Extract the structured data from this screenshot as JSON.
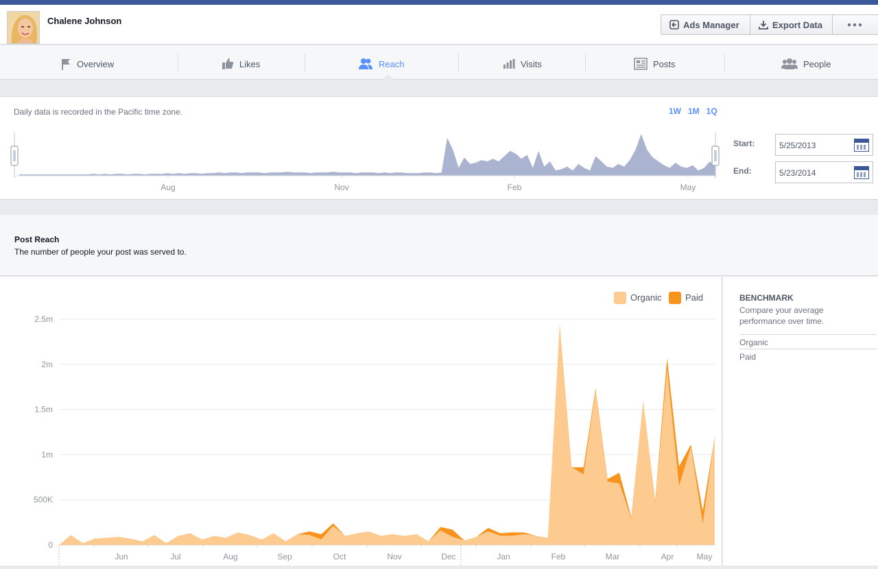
{
  "header": {
    "page_name": "Chalene Johnson",
    "buttons": {
      "ads_manager": "Ads Manager",
      "export_data": "Export Data",
      "more": "●●●"
    }
  },
  "tabs": [
    {
      "label": "Overview",
      "icon": "flag-icon",
      "active": false
    },
    {
      "label": "Likes",
      "icon": "thumbs-up-icon",
      "active": false
    },
    {
      "label": "Reach",
      "icon": "people-icon",
      "active": true
    },
    {
      "label": "Visits",
      "icon": "bar-chart-icon",
      "active": false
    },
    {
      "label": "Posts",
      "icon": "posts-icon",
      "active": false
    },
    {
      "label": "People",
      "icon": "group-icon",
      "active": false
    }
  ],
  "range": {
    "timezone_note": "Daily data is recorded in the Pacific time zone.",
    "buttons": [
      "1W",
      "1M",
      "1Q"
    ],
    "start_label": "Start:",
    "end_label": "End:",
    "start_date": "5/25/2013",
    "end_date": "5/23/2014",
    "month_labels": [
      "Aug",
      "Nov",
      "Feb",
      "May"
    ]
  },
  "section": {
    "title": "Post Reach",
    "subtitle": "The number of people your post was served to."
  },
  "benchmark": {
    "title": "BENCHMARK",
    "description": "Compare your average performance over time.",
    "items": [
      "Organic",
      "Paid"
    ]
  },
  "colors": {
    "organic": "#fdca8f",
    "paid": "#f7941e",
    "overview": "#aab3cf",
    "accent": "#5890ff",
    "brand": "#3b5998"
  },
  "chart_data": {
    "type": "area",
    "stacked": true,
    "legend": [
      "Organic",
      "Paid"
    ],
    "legend_position": "top-right",
    "y_ticks": [
      "0",
      "500K",
      "1m",
      "1.5m",
      "2m",
      "2.5m"
    ],
    "ylim": [
      0,
      2500000
    ],
    "x_ticks": [
      "Jun",
      "Jul",
      "Aug",
      "Sep",
      "Oct",
      "Nov",
      "Dec",
      "Jan",
      "Feb",
      "Mar",
      "Apr",
      "May"
    ],
    "xlim": [
      0,
      51
    ],
    "grid": true,
    "series": [
      {
        "name": "Organic",
        "values": [
          0,
          110000,
          20000,
          70000,
          80000,
          90000,
          70000,
          40000,
          110000,
          20000,
          100000,
          130000,
          60000,
          100000,
          80000,
          140000,
          110000,
          60000,
          130000,
          40000,
          120000,
          110000,
          60000,
          210000,
          100000,
          130000,
          150000,
          100000,
          120000,
          100000,
          120000,
          40000,
          160000,
          90000,
          50000,
          90000,
          150000,
          100000,
          100000,
          120000,
          100000,
          80000,
          2450000,
          860000,
          780000,
          1700000,
          700000,
          680000,
          290000,
          1600000,
          450000,
          1940000,
          650000,
          1080000,
          230000,
          1200000
        ]
      },
      {
        "name": "Paid",
        "values": [
          0,
          0,
          0,
          0,
          0,
          0,
          0,
          0,
          0,
          0,
          0,
          0,
          0,
          0,
          0,
          0,
          0,
          0,
          0,
          0,
          0,
          40000,
          60000,
          30000,
          0,
          0,
          0,
          0,
          0,
          0,
          0,
          0,
          40000,
          80000,
          0,
          0,
          40000,
          30000,
          40000,
          20000,
          0,
          0,
          0,
          0,
          80000,
          30000,
          30000,
          120000,
          20000,
          0,
          30000,
          130000,
          220000,
          30000,
          150000,
          0
        ]
      }
    ]
  },
  "overview_data": {
    "type": "area",
    "values": [
      2,
      2,
      2,
      2,
      2,
      2,
      2,
      2,
      2,
      2,
      2,
      2,
      2,
      3,
      2,
      3,
      2,
      3,
      3,
      2,
      3,
      3,
      2,
      3,
      3,
      3,
      4,
      3,
      4,
      3,
      4,
      4,
      3,
      4,
      4,
      5,
      4,
      5,
      5,
      4,
      5,
      5,
      5,
      4,
      5,
      5,
      5,
      6,
      5,
      5,
      5,
      4,
      5,
      5,
      5,
      6,
      5,
      5,
      5,
      4,
      5,
      5,
      5,
      4,
      5,
      4,
      5,
      5,
      4,
      4,
      4,
      5,
      5,
      4,
      5,
      58,
      40,
      12,
      28,
      18,
      20,
      24,
      22,
      26,
      22,
      30,
      38,
      34,
      26,
      32,
      12,
      38,
      14,
      22,
      8,
      10,
      14,
      8,
      18,
      12,
      8,
      30,
      22,
      14,
      12,
      18,
      14,
      24,
      40,
      64,
      40,
      28,
      22,
      16,
      12,
      20,
      14,
      12,
      16,
      8,
      12,
      22,
      14
    ]
  }
}
